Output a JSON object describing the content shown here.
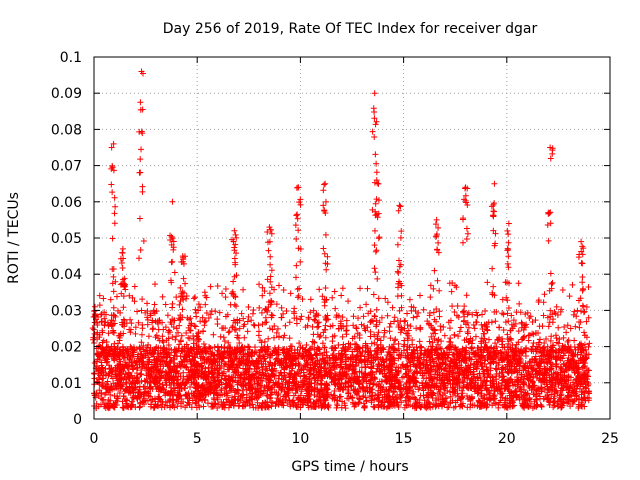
{
  "chart_data": {
    "type": "scatter",
    "title": "Day 256 of 2019, Rate Of TEC Index for receiver dgar",
    "xlabel": "GPS time / hours",
    "ylabel": "ROTI / TECUs",
    "xlim": [
      0,
      25
    ],
    "ylim": [
      0,
      0.1
    ],
    "xticks": [
      0,
      5,
      10,
      15,
      20,
      25
    ],
    "xtick_labels": [
      "0",
      "5",
      "10",
      "15",
      "20",
      "25"
    ],
    "yticks": [
      0,
      0.01,
      0.02,
      0.03,
      0.04,
      0.05,
      0.06,
      0.07,
      0.08,
      0.09,
      0.1
    ],
    "ytick_labels": [
      "0",
      "0.01",
      "0.02",
      "0.03",
      "0.04",
      "0.05",
      "0.06",
      "0.07",
      "0.08",
      "0.09",
      "0.1"
    ],
    "grid": true,
    "marker": "plus",
    "series": [
      {
        "name": "ROTI",
        "color": "#ff0000",
        "peaks": [
          {
            "x": 0.05,
            "y": 0.031
          },
          {
            "x": 0.95,
            "y": 0.076
          },
          {
            "x": 1.4,
            "y": 0.047
          },
          {
            "x": 2.3,
            "y": 0.096
          },
          {
            "x": 3.8,
            "y": 0.06
          },
          {
            "x": 4.3,
            "y": 0.045
          },
          {
            "x": 6.8,
            "y": 0.052
          },
          {
            "x": 8.5,
            "y": 0.053
          },
          {
            "x": 9.9,
            "y": 0.064
          },
          {
            "x": 11.2,
            "y": 0.065
          },
          {
            "x": 13.6,
            "y": 0.09
          },
          {
            "x": 13.7,
            "y": 0.066
          },
          {
            "x": 14.8,
            "y": 0.059
          },
          {
            "x": 16.6,
            "y": 0.055
          },
          {
            "x": 18.0,
            "y": 0.064
          },
          {
            "x": 19.4,
            "y": 0.065
          },
          {
            "x": 20.1,
            "y": 0.054
          },
          {
            "x": 22.1,
            "y": 0.075
          },
          {
            "x": 23.6,
            "y": 0.049
          }
        ]
      }
    ]
  }
}
